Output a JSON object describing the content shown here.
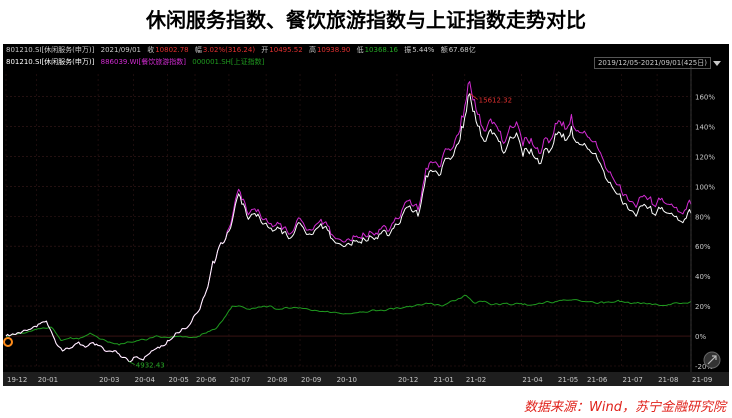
{
  "title": "休闲服务指数、餐饮旅游指数与上证指数走势对比",
  "source": "数据来源：Wind，苏宁金融研究院",
  "infobar": {
    "row1": {
      "code": "801210.SI[休闲服务(申万)]",
      "date": "2021/09/01",
      "close_label": "收",
      "close_value": "10802.78",
      "change_label": "幅",
      "change_value": "3.02%(316.24)",
      "open_label": "开",
      "open_value": "10495.52",
      "high_label": "高",
      "high_value": "10938.90",
      "low_label": "低",
      "low_value": "10368.16",
      "amp_label": "振",
      "amp_value": "5.44%",
      "amount_label": "额",
      "amount_value": "67.68亿"
    },
    "row2": {
      "s1": "801210.SI[休闲服务(申万)]",
      "s2": "886039.WI[餐饮旅游指数]",
      "s3": "000001.SH[上证指数]"
    },
    "range": "2019/12/05-2021/09/01(425日)"
  },
  "colors": {
    "series1": "#ffffff",
    "series2": "#d22bd2",
    "series3": "#1f9a1f",
    "axis_text": "#c8c8c8",
    "max_label": "#e03030",
    "min_label": "#25a825"
  },
  "chart_data": {
    "type": "line",
    "xlabel": "",
    "ylabel": "",
    "y_unit": "%",
    "ylim": [
      -20,
      175
    ],
    "yticks": [
      -20,
      0,
      20,
      40,
      60,
      80,
      100,
      120,
      140,
      160
    ],
    "ytick_labels": [
      "-20%",
      "0%",
      "20%",
      "40%",
      "60%",
      "80%",
      "100%",
      "120%",
      "140%",
      "160%"
    ],
    "xticks": [
      {
        "label": "19-12",
        "i": 0
      },
      {
        "label": "20-01",
        "i": 19
      },
      {
        "label": "20-03",
        "i": 57
      },
      {
        "label": "20-04",
        "i": 79
      },
      {
        "label": "20-05",
        "i": 100
      },
      {
        "label": "20-06",
        "i": 117
      },
      {
        "label": "20-07",
        "i": 138
      },
      {
        "label": "20-08",
        "i": 161
      },
      {
        "label": "20-09",
        "i": 182
      },
      {
        "label": "20-10",
        "i": 204
      },
      {
        "label": "20-12",
        "i": 242
      },
      {
        "label": "21-01",
        "i": 264
      },
      {
        "label": "21-02",
        "i": 284
      },
      {
        "label": "21-04",
        "i": 319
      },
      {
        "label": "21-05",
        "i": 341
      },
      {
        "label": "21-06",
        "i": 359
      },
      {
        "label": "21-07",
        "i": 381
      },
      {
        "label": "21-08",
        "i": 403
      },
      {
        "label": "21-09",
        "i": 424
      }
    ],
    "n_points": 425,
    "grid": true,
    "legend": "top-left",
    "series": [
      {
        "name": "801210.SI[休闲服务(申万)]",
        "anchors": [
          [
            0,
            0
          ],
          [
            10,
            3
          ],
          [
            20,
            8
          ],
          [
            25,
            10
          ],
          [
            30,
            -2
          ],
          [
            35,
            -10
          ],
          [
            40,
            -8
          ],
          [
            45,
            -4
          ],
          [
            50,
            -7
          ],
          [
            55,
            -6
          ],
          [
            60,
            -8
          ],
          [
            64,
            -10
          ],
          [
            70,
            -12
          ],
          [
            76,
            -17
          ],
          [
            80,
            -14
          ],
          [
            85,
            -16
          ],
          [
            90,
            -10
          ],
          [
            95,
            -8
          ],
          [
            100,
            -3
          ],
          [
            105,
            2
          ],
          [
            110,
            5
          ],
          [
            115,
            10
          ],
          [
            120,
            18
          ],
          [
            124,
            30
          ],
          [
            128,
            50
          ],
          [
            132,
            60
          ],
          [
            136,
            65
          ],
          [
            138,
            70
          ],
          [
            141,
            82
          ],
          [
            144,
            95
          ],
          [
            146,
            88
          ],
          [
            150,
            78
          ],
          [
            155,
            80
          ],
          [
            160,
            75
          ],
          [
            165,
            70
          ],
          [
            170,
            72
          ],
          [
            175,
            65
          ],
          [
            180,
            74
          ],
          [
            185,
            70
          ],
          [
            190,
            68
          ],
          [
            195,
            75
          ],
          [
            200,
            70
          ],
          [
            205,
            62
          ],
          [
            210,
            60
          ],
          [
            215,
            64
          ],
          [
            220,
            62
          ],
          [
            225,
            67
          ],
          [
            230,
            65
          ],
          [
            235,
            70
          ],
          [
            240,
            72
          ],
          [
            245,
            80
          ],
          [
            250,
            87
          ],
          [
            255,
            80
          ],
          [
            260,
            107
          ],
          [
            265,
            110
          ],
          [
            270,
            113
          ],
          [
            275,
            118
          ],
          [
            278,
            125
          ],
          [
            282,
            140
          ],
          [
            285,
            150
          ],
          [
            287,
            162
          ],
          [
            290,
            150
          ],
          [
            293,
            140
          ],
          [
            296,
            130
          ],
          [
            300,
            138
          ],
          [
            305,
            130
          ],
          [
            310,
            126
          ],
          [
            315,
            133
          ],
          [
            320,
            120
          ],
          [
            325,
            125
          ],
          [
            330,
            115
          ],
          [
            335,
            125
          ],
          [
            340,
            135
          ],
          [
            345,
            135
          ],
          [
            350,
            140
          ],
          [
            355,
            128
          ],
          [
            360,
            125
          ],
          [
            365,
            122
          ],
          [
            370,
            110
          ],
          [
            375,
            100
          ],
          [
            380,
            95
          ],
          [
            385,
            85
          ],
          [
            390,
            80
          ],
          [
            395,
            88
          ],
          [
            400,
            82
          ],
          [
            405,
            85
          ],
          [
            410,
            82
          ],
          [
            415,
            80
          ],
          [
            420,
            78
          ],
          [
            424,
            82
          ]
        ]
      },
      {
        "name": "886039.WI[餐饮旅游指数]",
        "anchors": [
          [
            0,
            0
          ],
          [
            10,
            3
          ],
          [
            20,
            8
          ],
          [
            25,
            10
          ],
          [
            30,
            -2
          ],
          [
            35,
            -10
          ],
          [
            40,
            -8
          ],
          [
            45,
            -4
          ],
          [
            50,
            -7
          ],
          [
            55,
            -6
          ],
          [
            60,
            -8
          ],
          [
            64,
            -10
          ],
          [
            70,
            -12
          ],
          [
            76,
            -17
          ],
          [
            80,
            -14
          ],
          [
            85,
            -16
          ],
          [
            90,
            -10
          ],
          [
            95,
            -8
          ],
          [
            100,
            -3
          ],
          [
            105,
            2
          ],
          [
            110,
            5
          ],
          [
            115,
            10
          ],
          [
            120,
            18
          ],
          [
            124,
            30
          ],
          [
            128,
            50
          ],
          [
            132,
            60
          ],
          [
            136,
            65
          ],
          [
            138,
            72
          ],
          [
            141,
            85
          ],
          [
            144,
            98
          ],
          [
            146,
            91
          ],
          [
            150,
            81
          ],
          [
            155,
            83
          ],
          [
            160,
            78
          ],
          [
            165,
            73
          ],
          [
            170,
            75
          ],
          [
            175,
            68
          ],
          [
            180,
            77
          ],
          [
            185,
            73
          ],
          [
            190,
            71
          ],
          [
            195,
            78
          ],
          [
            200,
            73
          ],
          [
            205,
            65
          ],
          [
            210,
            63
          ],
          [
            215,
            67
          ],
          [
            220,
            65
          ],
          [
            225,
            70
          ],
          [
            230,
            68
          ],
          [
            235,
            73
          ],
          [
            240,
            76
          ],
          [
            245,
            84
          ],
          [
            250,
            91
          ],
          [
            255,
            84
          ],
          [
            260,
            112
          ],
          [
            265,
            116
          ],
          [
            270,
            119
          ],
          [
            275,
            124
          ],
          [
            278,
            131
          ],
          [
            282,
            147
          ],
          [
            285,
            158
          ],
          [
            287,
            170
          ],
          [
            290,
            158
          ],
          [
            293,
            148
          ],
          [
            296,
            137
          ],
          [
            300,
            145
          ],
          [
            305,
            137
          ],
          [
            310,
            133
          ],
          [
            315,
            140
          ],
          [
            320,
            127
          ],
          [
            325,
            132
          ],
          [
            330,
            122
          ],
          [
            335,
            132
          ],
          [
            340,
            142
          ],
          [
            345,
            143
          ],
          [
            350,
            148
          ],
          [
            355,
            136
          ],
          [
            360,
            133
          ],
          [
            365,
            130
          ],
          [
            370,
            117
          ],
          [
            375,
            107
          ],
          [
            380,
            101
          ],
          [
            385,
            91
          ],
          [
            390,
            86
          ],
          [
            395,
            94
          ],
          [
            400,
            88
          ],
          [
            405,
            91
          ],
          [
            410,
            88
          ],
          [
            415,
            86
          ],
          [
            420,
            84
          ],
          [
            424,
            88
          ]
        ]
      },
      {
        "name": "000001.SH[上证指数]",
        "anchors": [
          [
            0,
            0
          ],
          [
            10,
            2
          ],
          [
            20,
            5
          ],
          [
            28,
            6
          ],
          [
            34,
            -3
          ],
          [
            40,
            -1
          ],
          [
            45,
            -2
          ],
          [
            52,
            2
          ],
          [
            58,
            -2
          ],
          [
            64,
            -4
          ],
          [
            70,
            -6
          ],
          [
            76,
            -4
          ],
          [
            82,
            -3
          ],
          [
            88,
            -2
          ],
          [
            94,
            0
          ],
          [
            100,
            -1
          ],
          [
            108,
            0
          ],
          [
            115,
            -1
          ],
          [
            120,
            0
          ],
          [
            125,
            3
          ],
          [
            130,
            5
          ],
          [
            135,
            12
          ],
          [
            140,
            20
          ],
          [
            145,
            20
          ],
          [
            150,
            18
          ],
          [
            160,
            20
          ],
          [
            170,
            18
          ],
          [
            180,
            19
          ],
          [
            190,
            17
          ],
          [
            200,
            16
          ],
          [
            210,
            15
          ],
          [
            220,
            16
          ],
          [
            230,
            17
          ],
          [
            240,
            18
          ],
          [
            250,
            20
          ],
          [
            260,
            22
          ],
          [
            270,
            20
          ],
          [
            280,
            25
          ],
          [
            285,
            27
          ],
          [
            290,
            22
          ],
          [
            295,
            23
          ],
          [
            300,
            21
          ],
          [
            310,
            22
          ],
          [
            320,
            21
          ],
          [
            330,
            22
          ],
          [
            340,
            23
          ],
          [
            350,
            24
          ],
          [
            360,
            23
          ],
          [
            370,
            22
          ],
          [
            380,
            23
          ],
          [
            390,
            22
          ],
          [
            400,
            21
          ],
          [
            410,
            21
          ],
          [
            420,
            22
          ],
          [
            424,
            23
          ]
        ]
      }
    ],
    "annotations": [
      {
        "text": "15612.32",
        "series": 0,
        "i": 287,
        "kind": "max"
      },
      {
        "text": "4932.43",
        "series": 0,
        "i": 76,
        "kind": "min"
      }
    ]
  }
}
